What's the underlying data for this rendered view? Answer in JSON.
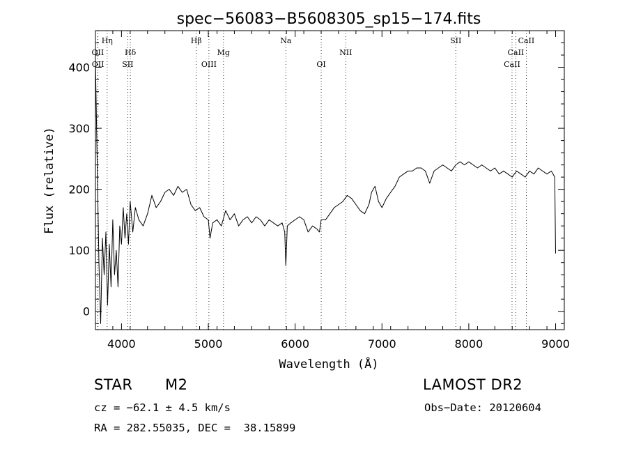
{
  "chart_data": {
    "type": "line",
    "title": "spec−56083−B5608305_sp15−174.fits",
    "xlabel": "Wavelength (Å)",
    "ylabel": "Flux (relative)",
    "xlim": [
      3700,
      9100
    ],
    "ylim": [
      -30,
      460
    ],
    "x_ticks": [
      4000,
      5000,
      6000,
      7000,
      8000,
      9000
    ],
    "y_ticks": [
      0,
      100,
      200,
      300,
      400
    ],
    "grid": false,
    "series": [
      {
        "x": [
          3700,
          3740,
          3760,
          3780,
          3800,
          3820,
          3840,
          3860,
          3880,
          3900,
          3920,
          3940,
          3960,
          3980,
          4000,
          4020,
          4040,
          4060,
          4080,
          4100,
          4130,
          4160,
          4200,
          4250,
          4300,
          4350,
          4400,
          4450,
          4500,
          4550,
          4600,
          4650,
          4700,
          4750,
          4800,
          4850,
          4900,
          4950,
          5000,
          5020,
          5050,
          5100,
          5150,
          5200,
          5250,
          5300,
          5350,
          5400,
          5450,
          5500,
          5550,
          5600,
          5650,
          5700,
          5750,
          5800,
          5850,
          5880,
          5893,
          5910,
          5950,
          6000,
          6050,
          6100,
          6150,
          6200,
          6250,
          6280,
          6300,
          6350,
          6400,
          6450,
          6500,
          6550,
          6600,
          6650,
          6700,
          6750,
          6800,
          6850,
          6880,
          6920,
          6960,
          7000,
          7050,
          7100,
          7150,
          7200,
          7250,
          7300,
          7350,
          7400,
          7450,
          7500,
          7550,
          7600,
          7650,
          7700,
          7750,
          7800,
          7850,
          7900,
          7950,
          8000,
          8050,
          8100,
          8150,
          8200,
          8250,
          8300,
          8350,
          8400,
          8450,
          8500,
          8550,
          8600,
          8650,
          8700,
          8750,
          8800,
          8850,
          8900,
          8950,
          8990,
          9000
        ],
        "y": [
          410,
          80,
          -20,
          120,
          60,
          130,
          10,
          110,
          40,
          150,
          60,
          100,
          40,
          140,
          110,
          170,
          120,
          160,
          110,
          180,
          130,
          170,
          150,
          140,
          160,
          190,
          170,
          180,
          195,
          200,
          190,
          205,
          195,
          200,
          175,
          165,
          170,
          155,
          150,
          120,
          145,
          150,
          140,
          165,
          150,
          160,
          140,
          150,
          155,
          145,
          155,
          150,
          140,
          150,
          145,
          140,
          145,
          130,
          75,
          140,
          145,
          150,
          155,
          150,
          130,
          140,
          135,
          130,
          150,
          150,
          160,
          170,
          175,
          180,
          190,
          185,
          175,
          165,
          160,
          175,
          195,
          205,
          180,
          170,
          185,
          195,
          205,
          220,
          225,
          230,
          230,
          235,
          235,
          230,
          210,
          230,
          235,
          240,
          235,
          230,
          240,
          245,
          240,
          245,
          240,
          235,
          240,
          235,
          230,
          235,
          225,
          230,
          225,
          220,
          230,
          225,
          220,
          230,
          225,
          235,
          230,
          225,
          230,
          220,
          95
        ]
      }
    ],
    "line_markers": [
      {
        "label": "Hη",
        "x": 3835,
        "row": 1
      },
      {
        "label": "OII",
        "x": 3727,
        "row": 2
      },
      {
        "label": "Hδ",
        "x": 4102,
        "row": 2
      },
      {
        "label": "OII",
        "x": 3729,
        "row": 3
      },
      {
        "label": "SII",
        "x": 4072,
        "row": 3
      },
      {
        "label": "Hβ",
        "x": 4861,
        "row": 1
      },
      {
        "label": "Mg",
        "x": 5175,
        "row": 2
      },
      {
        "label": "OIII",
        "x": 5007,
        "row": 3
      },
      {
        "label": "Na",
        "x": 5893,
        "row": 1
      },
      {
        "label": "OI",
        "x": 6300,
        "row": 3
      },
      {
        "label": "NII",
        "x": 6583,
        "row": 2
      },
      {
        "label": "SII",
        "x": 7850,
        "row": 1
      },
      {
        "label": "CaII",
        "x": 8662,
        "row": 1
      },
      {
        "label": "CaII",
        "x": 8542,
        "row": 2
      },
      {
        "label": "CaII",
        "x": 8498,
        "row": 3
      }
    ]
  },
  "info": {
    "object_class": "STAR",
    "subclass": "M2",
    "survey": "LAMOST DR2",
    "cz_line": "cz = −62.1 ± 4.5 km/s",
    "obs_date_line": "Obs−Date: 20120604",
    "coords_line": "RA = 282.55035, DEC =  38.15899"
  }
}
